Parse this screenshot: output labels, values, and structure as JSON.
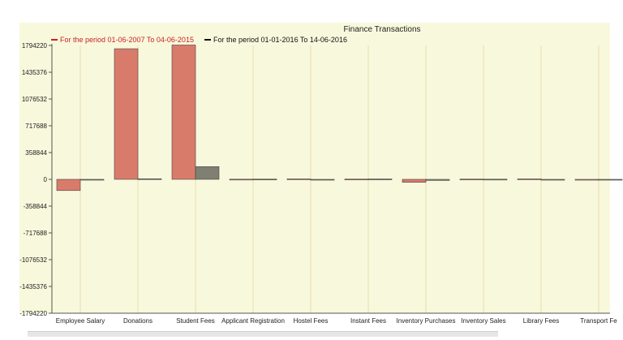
{
  "chart_data": {
    "type": "bar",
    "title": "Finance Transactions",
    "xlabel": "",
    "ylabel": "",
    "categories": [
      "Employee Salary",
      "Donations",
      "Student Fees",
      "Applicant Registration",
      "Hostel Fees",
      "Instant Fees",
      "Inventory Purchases",
      "Inventory Sales",
      "Library Fees",
      "Transport Fe"
    ],
    "y_ticks": [
      "1794220",
      "1435376",
      "1076532",
      "717688",
      "358844",
      "0",
      "-358844",
      "-717688",
      "-1076532",
      "-1435376",
      "-1794220"
    ],
    "ylim": [
      -1794220,
      1794220
    ],
    "grid": true,
    "legend_position": "top-left",
    "series": [
      {
        "name": "For the period 01-06-2007  To 04-06-2015",
        "color": "#d97b6b",
        "legend_text_color": "#cc2222",
        "values": [
          -150000,
          1750000,
          1800000,
          2000,
          6000,
          3000,
          -40000,
          3000,
          6000,
          0
        ]
      },
      {
        "name": "For the period 01-01-2016  To 14-06-2016",
        "color": "#7f7f72",
        "legend_text_color": "#111111",
        "values": [
          0,
          8000,
          170000,
          3000,
          0,
          5000,
          -15000,
          2000,
          0,
          0
        ]
      }
    ],
    "colors": {
      "plot_background": "#f8f8dc",
      "gridline": "#eadcb0",
      "axis": "#555555",
      "text": "#222222"
    }
  }
}
